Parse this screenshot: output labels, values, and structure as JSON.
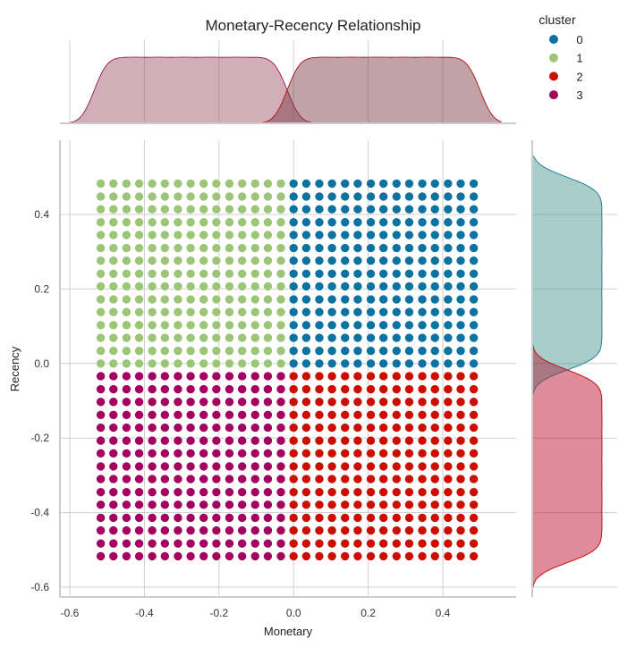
{
  "chart_data": {
    "type": "scatter",
    "title": "Monetary-Recency Relationship",
    "xlabel": "Monetary",
    "ylabel": "Recency",
    "xlim": [
      -0.63,
      0.6
    ],
    "ylim": [
      -0.63,
      0.6
    ],
    "xticks": [
      "-0.6",
      "-0.4",
      "-0.2",
      "0.0",
      "0.2",
      "0.4"
    ],
    "yticks": [
      "-0.6",
      "-0.4",
      "-0.2",
      "0.0",
      "0.2",
      "0.4"
    ],
    "xtick_values": [
      -0.6,
      -0.4,
      -0.2,
      0.0,
      0.2,
      0.4
    ],
    "ytick_values": [
      -0.6,
      -0.4,
      -0.2,
      0.0,
      0.2,
      0.4
    ],
    "grid": true,
    "marginals": "kde",
    "legend": {
      "title": "cluster",
      "placement": "top-right",
      "entries": [
        "0",
        "1",
        "2",
        "3"
      ]
    },
    "colors": {
      "0": "#0b72a1",
      "1": "#9cc577",
      "2": "#cc0e00",
      "3": "#a4005f"
    },
    "grid_values": [
      -0.517,
      -0.483,
      -0.448,
      -0.414,
      -0.379,
      -0.345,
      -0.31,
      -0.276,
      -0.241,
      -0.207,
      -0.172,
      -0.138,
      -0.103,
      -0.069,
      -0.034,
      0.0,
      0.034,
      0.069,
      0.103,
      0.138,
      0.172,
      0.207,
      0.241,
      0.276,
      0.31,
      0.345,
      0.379,
      0.414,
      0.448,
      0.483
    ],
    "points_note_grid": "all (Monetary, Recency) pairs from grid_values",
    "cluster_rule": {
      "0": "Monetary >= 0 and Recency >= 0",
      "1": "Monetary < 0 and Recency >= 0",
      "2": "Monetary >= 0 and Recency < 0",
      "3": "Monetary < 0 and Recency < 0"
    }
  }
}
